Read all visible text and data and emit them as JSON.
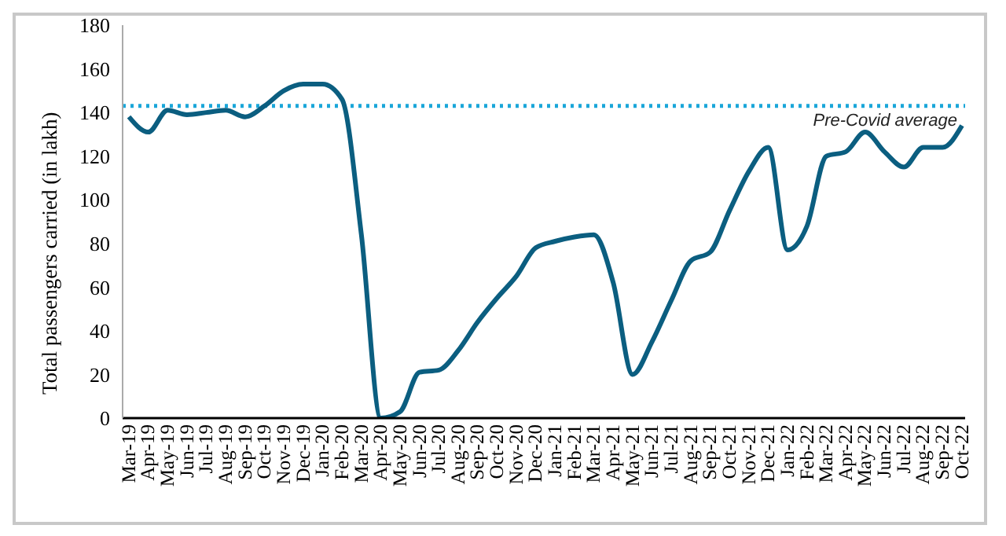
{
  "chart_data": {
    "type": "line",
    "ylabel": "Total passengers carried (in lakh)",
    "categories": [
      "Mar-19",
      "Apr-19",
      "May-19",
      "Jun-19",
      "Jul-19",
      "Aug-19",
      "Sep-19",
      "Oct-19",
      "Nov-19",
      "Dec-19",
      "Jan-20",
      "Feb-20",
      "Mar-20",
      "Apr-20",
      "May-20",
      "Jun-20",
      "Jul-20",
      "Aug-20",
      "Sep-20",
      "Oct-20",
      "Nov-20",
      "Dec-20",
      "Jan-21",
      "Feb-21",
      "Mar-21",
      "Apr-21",
      "May-21",
      "Jun-21",
      "Jul-21",
      "Aug-21",
      "Sep-21",
      "Oct-21",
      "Nov-21",
      "Dec-21",
      "Jan-22",
      "Feb-22",
      "Mar-22",
      "Apr-22",
      "May-22",
      "Jun-22",
      "Jul-22",
      "Aug-22",
      "Sep-22",
      "Oct-22"
    ],
    "series": [
      {
        "color": "#0b5e80",
        "values": [
          138,
          131,
          141,
          139,
          140,
          141,
          138,
          143,
          150,
          153,
          153,
          146,
          84,
          0,
          3,
          21,
          22,
          31,
          44,
          55,
          65,
          78,
          81,
          83,
          84,
          62,
          20,
          35,
          54,
          72,
          76,
          95,
          113,
          124,
          77,
          88,
          120,
          122,
          131,
          122,
          115,
          124,
          124,
          134
        ]
      }
    ],
    "ylim": [
      0,
      180
    ],
    "yticks": [
      0,
      20,
      40,
      60,
      80,
      100,
      120,
      140,
      160,
      180
    ],
    "ref_lines": [
      {
        "axis": "y",
        "value": 143,
        "label": "Pre-Covid average",
        "color": "#1aa6d9",
        "line_style": "dotted"
      }
    ],
    "grid": false,
    "legend": false,
    "marker": "none",
    "line_style": "solid"
  }
}
